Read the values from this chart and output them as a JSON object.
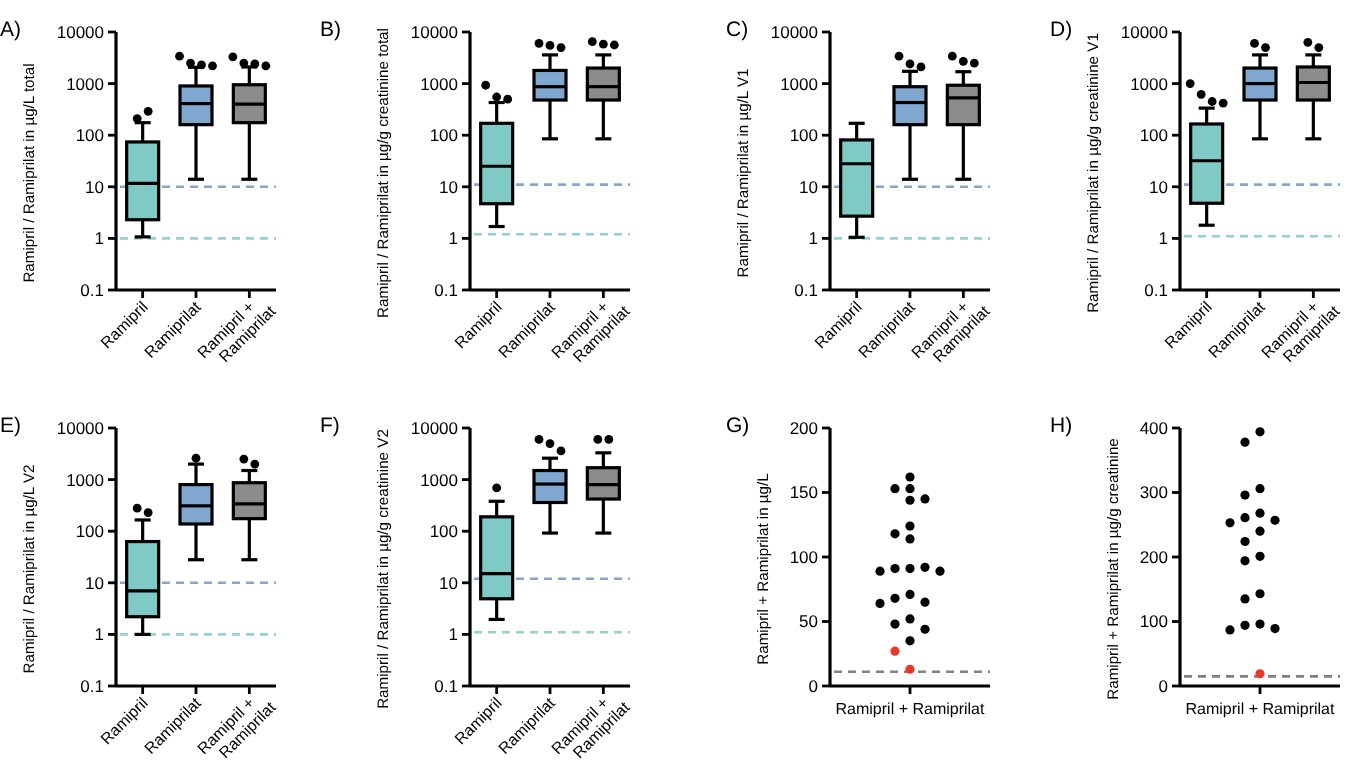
{
  "chart_data": [
    {
      "type": "box",
      "title": "A)",
      "ylabel": "Ramipril / Ramiprilat in µg/L total",
      "categories": [
        "Ramipril",
        "Ramiprilat",
        "Ramipril + Ramiprilat"
      ],
      "log": true,
      "ylim": [
        0.1,
        10000
      ],
      "yticks": [
        0.1,
        1,
        10,
        100,
        1000,
        10000
      ],
      "colors": [
        "#7fcac4",
        "#7fa7cf",
        "#8c8c8c"
      ],
      "boxes": [
        {
          "low": 1.07,
          "q1": 2.3,
          "median": 11.7,
          "q3": 74,
          "high": 175,
          "outliers": [
            210,
            290
          ]
        },
        {
          "low": 14,
          "q1": 160,
          "median": 410,
          "q3": 900,
          "high": 2070,
          "outliers": [
            3400,
            2500,
            2300,
            2200
          ]
        },
        {
          "low": 14,
          "q1": 175,
          "median": 400,
          "q3": 950,
          "high": 2100,
          "outliers": [
            3300,
            2500,
            2400,
            2200
          ]
        }
      ],
      "ref_lines": [
        {
          "axis": "y",
          "value": 10,
          "color": "#86a6cc",
          "line_style": "dashed"
        },
        {
          "axis": "y",
          "value": 1,
          "color": "#93d2d0",
          "line_style": "dashed"
        }
      ]
    },
    {
      "type": "box",
      "title": "B)",
      "ylabel": "Ramipril / Ramiprilat in µg/g creatinine total",
      "categories": [
        "Ramipril",
        "Ramiprilat",
        "Ramipril + Ramiprilat"
      ],
      "log": true,
      "ylim": [
        0.1,
        10000
      ],
      "yticks": [
        0.1,
        1,
        10,
        100,
        1000,
        10000
      ],
      "colors": [
        "#7fcac4",
        "#7fa7cf",
        "#8c8c8c"
      ],
      "boxes": [
        {
          "low": 1.7,
          "q1": 4.7,
          "median": 25,
          "q3": 170,
          "high": 430,
          "outliers": [
            930,
            550,
            500
          ]
        },
        {
          "low": 85,
          "q1": 480,
          "median": 870,
          "q3": 1800,
          "high": 3600,
          "outliers": [
            6000,
            5500,
            5000
          ]
        },
        {
          "low": 85,
          "q1": 480,
          "median": 870,
          "q3": 2000,
          "high": 3600,
          "outliers": [
            6500,
            5800,
            5600
          ]
        }
      ],
      "ref_lines": [
        {
          "axis": "y",
          "value": 11,
          "color": "#86a6cc",
          "line_style": "dashed"
        },
        {
          "axis": "y",
          "value": 1.2,
          "color": "#93d2d0",
          "line_style": "dashed"
        }
      ]
    },
    {
      "type": "box",
      "title": "C)",
      "ylabel": "Ramipril / Ramiprilat in µg/L V1",
      "categories": [
        "Ramipril",
        "Ramiprilat",
        "Ramipril + Ramiprilat"
      ],
      "log": true,
      "ylim": [
        0.1,
        10000
      ],
      "yticks": [
        0.1,
        1,
        10,
        100,
        1000,
        10000
      ],
      "colors": [
        "#7fcac4",
        "#7fa7cf",
        "#8c8c8c"
      ],
      "boxes": [
        {
          "low": 1.05,
          "q1": 2.7,
          "median": 28,
          "q3": 81,
          "high": 170
        },
        {
          "low": 14,
          "q1": 160,
          "median": 430,
          "q3": 870,
          "high": 1730,
          "outliers": [
            3400,
            2400,
            2100
          ]
        },
        {
          "low": 14,
          "q1": 160,
          "median": 530,
          "q3": 930,
          "high": 1700,
          "outliers": [
            3400,
            2700,
            2500
          ]
        }
      ],
      "ref_lines": [
        {
          "axis": "y",
          "value": 10,
          "color": "#86a6cc",
          "line_style": "dashed"
        },
        {
          "axis": "y",
          "value": 1,
          "color": "#93d2d0",
          "line_style": "dashed"
        }
      ]
    },
    {
      "type": "box",
      "title": "D)",
      "ylabel": "Ramipril / Ramiprilat in µg/g creatinine V1",
      "categories": [
        "Ramipril",
        "Ramiprilat",
        "Ramipril + Ramiprilat"
      ],
      "log": true,
      "ylim": [
        0.1,
        10000
      ],
      "yticks": [
        0.1,
        1,
        10,
        100,
        1000,
        10000
      ],
      "colors": [
        "#7fcac4",
        "#7fa7cf",
        "#8c8c8c"
      ],
      "boxes": [
        {
          "low": 1.8,
          "q1": 4.8,
          "median": 32,
          "q3": 165,
          "high": 335,
          "outliers": [
            1000,
            620,
            450,
            420
          ]
        },
        {
          "low": 85,
          "q1": 480,
          "median": 1000,
          "q3": 2000,
          "high": 3600,
          "outliers": [
            6000,
            5000
          ]
        },
        {
          "low": 85,
          "q1": 480,
          "median": 1050,
          "q3": 2100,
          "high": 3600,
          "outliers": [
            6300,
            5000
          ]
        }
      ],
      "ref_lines": [
        {
          "axis": "y",
          "value": 11,
          "color": "#86a6cc",
          "line_style": "dashed"
        },
        {
          "axis": "y",
          "value": 1.1,
          "color": "#93d2d0",
          "line_style": "dashed"
        }
      ]
    },
    {
      "type": "box",
      "title": "E)",
      "ylabel": "Ramipril / Ramiprilat in µg/L V2",
      "categories": [
        "Ramipril",
        "Ramiprilat",
        "Ramipril + Ramiprilat"
      ],
      "log": true,
      "ylim": [
        0.1,
        10000
      ],
      "yticks": [
        0.1,
        1,
        10,
        100,
        1000,
        10000
      ],
      "colors": [
        "#7fcac4",
        "#7fa7cf",
        "#8c8c8c"
      ],
      "boxes": [
        {
          "low": 1,
          "q1": 2.2,
          "median": 7,
          "q3": 63,
          "high": 165,
          "outliers": [
            280,
            230
          ]
        },
        {
          "low": 28,
          "q1": 138,
          "median": 310,
          "q3": 800,
          "high": 2000,
          "outliers": [
            2600
          ]
        },
        {
          "low": 28,
          "q1": 175,
          "median": 340,
          "q3": 870,
          "high": 1500,
          "outliers": [
            2500,
            2000
          ]
        }
      ],
      "ref_lines": [
        {
          "axis": "y",
          "value": 10,
          "color": "#86a6cc",
          "line_style": "dashed"
        },
        {
          "axis": "y",
          "value": 1,
          "color": "#93d2d0",
          "line_style": "dashed"
        }
      ]
    },
    {
      "type": "box",
      "title": "F)",
      "ylabel": "Ramipril / Ramiprilat in µg/g creatinine V2",
      "categories": [
        "Ramipril",
        "Ramiprilat",
        "Ramipril + Ramiprilat"
      ],
      "log": true,
      "ylim": [
        0.1,
        10000
      ],
      "yticks": [
        0.1,
        1,
        10,
        100,
        1000,
        10000
      ],
      "colors": [
        "#7fcac4",
        "#7fa7cf",
        "#8c8c8c"
      ],
      "boxes": [
        {
          "low": 1.95,
          "q1": 4.9,
          "median": 15,
          "q3": 190,
          "high": 380,
          "outliers": [
            690
          ]
        },
        {
          "low": 92,
          "q1": 360,
          "median": 820,
          "q3": 1500,
          "high": 2600,
          "outliers": [
            6000,
            5000,
            3600
          ]
        },
        {
          "low": 92,
          "q1": 420,
          "median": 800,
          "q3": 1700,
          "high": 3300,
          "outliers": [
            6000,
            6000
          ]
        }
      ],
      "ref_lines": [
        {
          "axis": "y",
          "value": 12,
          "color": "#86a6cc",
          "line_style": "dashed"
        },
        {
          "axis": "y",
          "value": 1.1,
          "color": "#93d2d0",
          "line_style": "dashed"
        }
      ]
    },
    {
      "type": "scatter",
      "title": "G)",
      "ylabel": "Ramipril + Ramiprilat in µg/L",
      "categories": [
        "Ramipril + Ramiprilat"
      ],
      "ylim": [
        0,
        200
      ],
      "yticks": [
        0,
        50,
        100,
        150,
        200
      ],
      "marker": "circle",
      "series": [
        {
          "color": "#000000",
          "x": [
            "Ramipril + Ramiprilat",
            "Ramipril + Ramiprilat",
            "Ramipril + Ramiprilat",
            "Ramipril + Ramiprilat",
            "Ramipril + Ramiprilat",
            "Ramipril + Ramiprilat",
            "Ramipril + Ramiprilat",
            "Ramipril + Ramiprilat",
            "Ramipril + Ramiprilat",
            "Ramipril + Ramiprilat",
            "Ramipril + Ramiprilat",
            "Ramipril + Ramiprilat",
            "Ramipril + Ramiprilat",
            "Ramipril + Ramiprilat",
            "Ramipril + Ramiprilat",
            "Ramipril + Ramiprilat",
            "Ramipril + Ramiprilat",
            "Ramipril + Ramiprilat",
            "Ramipril + Ramiprilat",
            "Ramipril + Ramiprilat",
            "Ramipril + Ramiprilat"
          ],
          "values": [
            162,
            153,
            153,
            145,
            144,
            124,
            118,
            114,
            91,
            91,
            92,
            89,
            89,
            71,
            68,
            65,
            64,
            52,
            48,
            44,
            35
          ]
        },
        {
          "color": "#e8382a",
          "x": [
            "Ramipril + Ramiprilat",
            "Ramipril + Ramiprilat"
          ],
          "values": [
            27,
            13
          ]
        }
      ],
      "ref_lines": [
        {
          "axis": "y",
          "value": 11,
          "color": "#808080",
          "line_style": "dashed"
        }
      ]
    },
    {
      "type": "scatter",
      "title": "H)",
      "ylabel": "Ramipril + Ramiprilat in µg/g creatinine",
      "categories": [
        "Ramipril + Ramiprilat"
      ],
      "ylim": [
        0,
        400
      ],
      "yticks": [
        0,
        100,
        200,
        300,
        400
      ],
      "marker": "circle",
      "series": [
        {
          "color": "#000000",
          "x": [
            "Ramipril + Ramiprilat",
            "Ramipril + Ramiprilat",
            "Ramipril + Ramiprilat",
            "Ramipril + Ramiprilat",
            "Ramipril + Ramiprilat",
            "Ramipril + Ramiprilat",
            "Ramipril + Ramiprilat",
            "Ramipril + Ramiprilat",
            "Ramipril + Ramiprilat",
            "Ramipril + Ramiprilat",
            "Ramipril + Ramiprilat",
            "Ramipril + Ramiprilat",
            "Ramipril + Ramiprilat",
            "Ramipril + Ramiprilat",
            "Ramipril + Ramiprilat",
            "Ramipril + Ramiprilat",
            "Ramipril + Ramiprilat",
            "Ramipril + Ramiprilat"
          ],
          "values": [
            394,
            378,
            306,
            296,
            268,
            261,
            257,
            253,
            240,
            224,
            201,
            194,
            143,
            135,
            96,
            94,
            89,
            87
          ]
        },
        {
          "color": "#e8382a",
          "x": [
            "Ramipril + Ramiprilat"
          ],
          "values": [
            19
          ]
        }
      ],
      "ref_lines": [
        {
          "axis": "y",
          "value": 15,
          "color": "#808080",
          "line_style": "dashed"
        }
      ]
    }
  ]
}
